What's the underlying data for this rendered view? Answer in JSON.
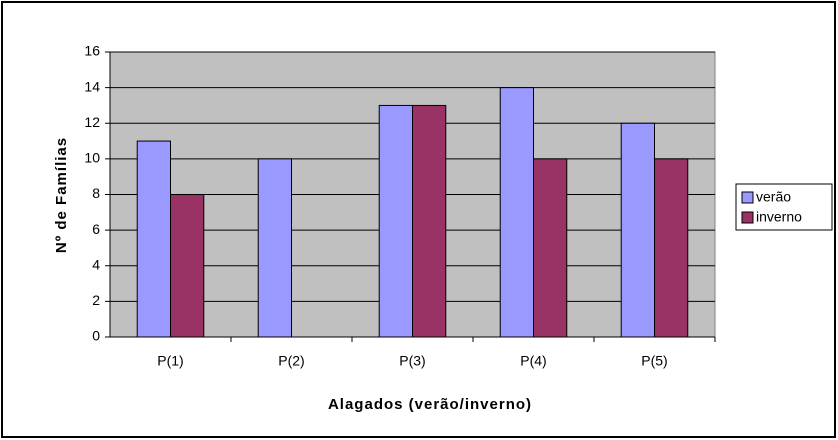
{
  "chart_data": {
    "type": "bar",
    "x_label": "Alagados (verão/inverno)",
    "y_label": "Nº de Famílias",
    "categories": [
      "P(1)",
      "P(2)",
      "P(3)",
      "P(4)",
      "P(5)"
    ],
    "series": [
      {
        "name": "verão",
        "color": "#9999ff",
        "values": [
          11,
          10,
          13,
          14,
          12
        ]
      },
      {
        "name": "inverno",
        "color": "#993366",
        "values": [
          8,
          0,
          13,
          10,
          10
        ]
      }
    ],
    "ylim": [
      0,
      16
    ],
    "yticks": [
      0,
      2,
      4,
      6,
      8,
      10,
      12,
      14,
      16
    ],
    "grid": true,
    "plot_background": "#c0c0c0",
    "legend": "right"
  }
}
